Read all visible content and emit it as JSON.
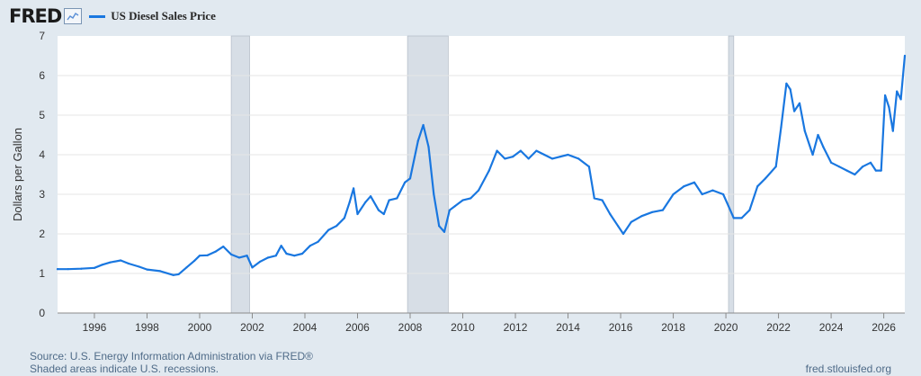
{
  "header": {
    "logo_text": "FRED",
    "logo_icon": "line-chart-icon",
    "series_name": "US Diesel Sales Price"
  },
  "colors": {
    "line": "#1977e0",
    "recession": "#d7dee6",
    "background": "#e1e9f0",
    "plot_background": "#ffffff"
  },
  "chart_data": {
    "type": "line",
    "title": "",
    "xlabel": "",
    "ylabel": "Dollars per Gallon",
    "ylim": [
      0,
      7
    ],
    "xlim": [
      1994.6,
      2026.8
    ],
    "yticks": [
      "0",
      "1",
      "2",
      "3",
      "4",
      "5",
      "6",
      "7"
    ],
    "xticks": [
      "1996",
      "1998",
      "2000",
      "2002",
      "2004",
      "2006",
      "2008",
      "2010",
      "2012",
      "2014",
      "2016",
      "2018",
      "2020",
      "2022",
      "2024",
      "2026"
    ],
    "grid": "horizontal",
    "recessions": [
      [
        2001.2,
        2001.9
      ],
      [
        2007.9,
        2009.45
      ],
      [
        2020.1,
        2020.3
      ]
    ],
    "series": [
      {
        "name": "US Diesel Sales Price",
        "x": [
          1994.6,
          1995.0,
          1995.5,
          1996.0,
          1996.3,
          1996.6,
          1997.0,
          1997.3,
          1997.7,
          1998.0,
          1998.5,
          1999.0,
          1999.2,
          1999.5,
          1999.8,
          2000.0,
          2000.3,
          2000.6,
          2000.9,
          2001.2,
          2001.5,
          2001.8,
          2002.0,
          2002.3,
          2002.6,
          2002.9,
          2003.1,
          2003.3,
          2003.6,
          2003.9,
          2004.2,
          2004.5,
          2004.9,
          2005.2,
          2005.5,
          2005.7,
          2005.85,
          2006.0,
          2006.3,
          2006.5,
          2006.8,
          2007.0,
          2007.2,
          2007.5,
          2007.8,
          2008.0,
          2008.3,
          2008.5,
          2008.7,
          2008.9,
          2009.1,
          2009.3,
          2009.5,
          2009.7,
          2010.0,
          2010.3,
          2010.6,
          2011.0,
          2011.3,
          2011.6,
          2011.9,
          2012.2,
          2012.5,
          2012.8,
          2013.1,
          2013.4,
          2013.7,
          2014.0,
          2014.4,
          2014.8,
          2015.0,
          2015.3,
          2015.6,
          2015.9,
          2016.1,
          2016.4,
          2016.8,
          2017.2,
          2017.6,
          2018.0,
          2018.4,
          2018.8,
          2019.1,
          2019.5,
          2019.9,
          2020.1,
          2020.3,
          2020.6,
          2020.9,
          2021.2,
          2021.5,
          2021.9,
          2022.1,
          2022.3,
          2022.45,
          2022.6,
          2022.8,
          2023.0,
          2023.3,
          2023.5,
          2023.7,
          2024.0,
          2024.3,
          2024.6,
          2024.9,
          2025.2,
          2025.5,
          2025.7,
          2025.9,
          2026.05,
          2026.2,
          2026.35,
          2026.5,
          2026.65,
          2026.8
        ],
        "values": [
          1.11,
          1.11,
          1.12,
          1.14,
          1.22,
          1.28,
          1.33,
          1.25,
          1.17,
          1.1,
          1.06,
          0.96,
          0.98,
          1.15,
          1.32,
          1.45,
          1.46,
          1.55,
          1.68,
          1.48,
          1.4,
          1.45,
          1.15,
          1.3,
          1.4,
          1.45,
          1.7,
          1.5,
          1.45,
          1.5,
          1.7,
          1.8,
          2.1,
          2.2,
          2.4,
          2.8,
          3.15,
          2.5,
          2.8,
          2.95,
          2.6,
          2.5,
          2.85,
          2.9,
          3.3,
          3.4,
          4.35,
          4.75,
          4.2,
          3.0,
          2.2,
          2.05,
          2.6,
          2.7,
          2.85,
          2.9,
          3.1,
          3.6,
          4.1,
          3.9,
          3.95,
          4.1,
          3.9,
          4.1,
          4.0,
          3.9,
          3.95,
          4.0,
          3.9,
          3.7,
          2.9,
          2.85,
          2.5,
          2.2,
          2.0,
          2.3,
          2.45,
          2.55,
          2.6,
          3.0,
          3.2,
          3.3,
          3.0,
          3.1,
          3.0,
          2.7,
          2.4,
          2.4,
          2.6,
          3.2,
          3.4,
          3.7,
          4.7,
          5.8,
          5.65,
          5.1,
          5.3,
          4.6,
          4.0,
          4.5,
          4.2,
          3.8,
          3.7,
          3.6,
          3.5,
          3.7,
          3.8,
          3.6,
          3.6,
          5.5,
          5.2,
          4.6,
          5.6,
          5.4,
          6.5
        ]
      }
    ]
  },
  "footer": {
    "source": "Source: U.S. Energy Information Administration via FRED®",
    "shaded": "Shaded areas indicate U.S. recessions.",
    "site": "fred.stlouisfed.org"
  }
}
